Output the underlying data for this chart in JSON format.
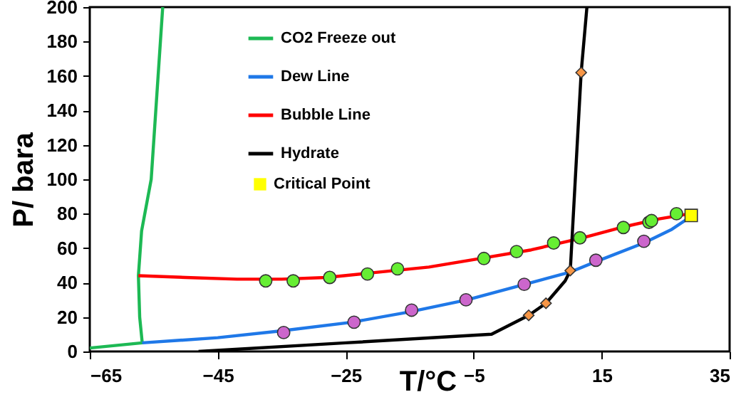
{
  "chart_data": {
    "type": "line",
    "xlabel": "T/°C",
    "ylabel": "P/ bara",
    "xlim": [
      -65,
      35
    ],
    "ylim": [
      0,
      200
    ],
    "xticks": [
      -65,
      -45,
      -25,
      -5,
      15,
      35
    ],
    "yticks": [
      0,
      20,
      40,
      60,
      80,
      100,
      120,
      140,
      160,
      180,
      200
    ],
    "legend": "top left",
    "series": [
      {
        "name": "CO2 Freeze out",
        "color": "#1db954",
        "marker": "none",
        "x": [
          -65,
          -56.8,
          -57.2,
          -57.4,
          -56.9,
          -55.4,
          -54.5,
          -53.6
        ],
        "values": [
          2,
          5,
          20,
          44,
          70,
          100,
          150,
          200
        ]
      },
      {
        "name": "Dew Line",
        "color": "#1f78e8",
        "marker": "none",
        "x": [
          -56.8,
          -45,
          -35,
          -24,
          -15,
          -6,
          3,
          10,
          14,
          21.6,
          26,
          28.8
        ],
        "values": [
          5,
          8,
          12,
          17,
          23,
          30,
          39,
          46,
          52,
          63,
          71,
          78
        ]
      },
      {
        "name": "Bubble Line",
        "color": "#ff0000",
        "marker": "none",
        "x": [
          -57.4,
          -50,
          -42,
          -35,
          -28,
          -20,
          -12,
          -4,
          4,
          12,
          18,
          24,
          28.8
        ],
        "values": [
          44,
          43,
          42,
          42,
          43,
          46,
          49,
          54,
          59,
          66,
          72,
          77,
          80
        ]
      },
      {
        "name": "Hydrate",
        "color": "#000000",
        "marker": "none",
        "x": [
          -48,
          -25,
          -2.2,
          3.6,
          6.3,
          9.3,
          10.1,
          11.8,
          12.7
        ],
        "values": [
          0,
          5,
          10,
          21,
          28,
          41,
          47,
          162,
          200
        ]
      },
      {
        "type": "scatter",
        "color": "#66ee33",
        "marker": "circle",
        "x": [
          -37.5,
          -33.2,
          -27.5,
          -21.6,
          -16.9,
          -3.4,
          1.7,
          7.5,
          11.6,
          18.4,
          22.4,
          22.8,
          26.7
        ],
        "values": [
          41,
          41,
          43,
          45,
          48,
          54,
          58,
          63,
          66,
          72,
          75,
          76,
          80
        ]
      },
      {
        "type": "scatter",
        "color": "#cc66cc",
        "marker": "circle",
        "x": [
          -34.7,
          -23.7,
          -14.7,
          -6.2,
          2.9,
          14.1,
          21.6
        ],
        "values": [
          11,
          17,
          24,
          30,
          39,
          53,
          64
        ]
      },
      {
        "type": "scatter",
        "color": "#f79646",
        "marker": "diamond",
        "x": [
          3.6,
          6.3,
          10.1,
          11.8
        ],
        "values": [
          21,
          28,
          47,
          162
        ]
      },
      {
        "type": "scatter",
        "name": "Critical Point",
        "color": "#ffff00",
        "marker": "square",
        "x": [
          29
        ],
        "values": [
          79
        ]
      }
    ]
  }
}
